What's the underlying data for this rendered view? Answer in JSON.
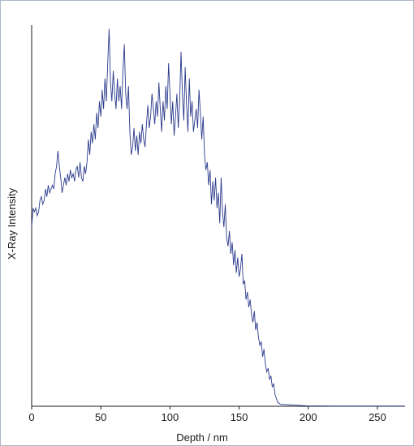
{
  "chart_data": {
    "type": "line",
    "xlabel": "Depth / nm",
    "ylabel": "X-Ray Intensity",
    "xlim": [
      0,
      270
    ],
    "ylim": [
      0,
      1
    ],
    "x_ticks": [
      0,
      50,
      100,
      150,
      200,
      250
    ],
    "y_ticks_shown": false,
    "grid": false,
    "legend": "none",
    "series": [
      {
        "color": "#2b3a8c",
        "points": [
          [
            0,
            0.47
          ],
          [
            1,
            0.52
          ],
          [
            2,
            0.51
          ],
          [
            3,
            0.52
          ],
          [
            4,
            0.5
          ],
          [
            5,
            0.51
          ],
          [
            6,
            0.54
          ],
          [
            7,
            0.55
          ],
          [
            8,
            0.53
          ],
          [
            9,
            0.54
          ],
          [
            10,
            0.57
          ],
          [
            11,
            0.55
          ],
          [
            12,
            0.58
          ],
          [
            13,
            0.56
          ],
          [
            14,
            0.57
          ],
          [
            15,
            0.58
          ],
          [
            16,
            0.57
          ],
          [
            17,
            0.61
          ],
          [
            18,
            0.63
          ],
          [
            19,
            0.67
          ],
          [
            20,
            0.63
          ],
          [
            21,
            0.6
          ],
          [
            22,
            0.56
          ],
          [
            23,
            0.58
          ],
          [
            24,
            0.6
          ],
          [
            25,
            0.58
          ],
          [
            26,
            0.61
          ],
          [
            27,
            0.59
          ],
          [
            28,
            0.62
          ],
          [
            29,
            0.6
          ],
          [
            30,
            0.61
          ],
          [
            31,
            0.59
          ],
          [
            32,
            0.62
          ],
          [
            33,
            0.63
          ],
          [
            34,
            0.6
          ],
          [
            35,
            0.64
          ],
          [
            36,
            0.6
          ],
          [
            37,
            0.59
          ],
          [
            38,
            0.63
          ],
          [
            39,
            0.61
          ],
          [
            40,
            0.64
          ],
          [
            41,
            0.7
          ],
          [
            42,
            0.66
          ],
          [
            43,
            0.72
          ],
          [
            44,
            0.69
          ],
          [
            45,
            0.74
          ],
          [
            46,
            0.7
          ],
          [
            47,
            0.77
          ],
          [
            48,
            0.73
          ],
          [
            49,
            0.8
          ],
          [
            50,
            0.76
          ],
          [
            51,
            0.83
          ],
          [
            52,
            0.78
          ],
          [
            53,
            0.86
          ],
          [
            54,
            0.8
          ],
          [
            55,
            0.9
          ],
          [
            56,
            0.99
          ],
          [
            57,
            0.85
          ],
          [
            58,
            0.8
          ],
          [
            59,
            0.88
          ],
          [
            60,
            0.82
          ],
          [
            61,
            0.78
          ],
          [
            62,
            0.86
          ],
          [
            63,
            0.8
          ],
          [
            64,
            0.84
          ],
          [
            65,
            0.78
          ],
          [
            66,
            0.88
          ],
          [
            67,
            0.95
          ],
          [
            68,
            0.82
          ],
          [
            69,
            0.78
          ],
          [
            70,
            0.84
          ],
          [
            71,
            0.72
          ],
          [
            72,
            0.66
          ],
          [
            73,
            0.68
          ],
          [
            74,
            0.73
          ],
          [
            75,
            0.67
          ],
          [
            76,
            0.71
          ],
          [
            77,
            0.66
          ],
          [
            78,
            0.72
          ],
          [
            79,
            0.69
          ],
          [
            80,
            0.74
          ],
          [
            81,
            0.7
          ],
          [
            82,
            0.68
          ],
          [
            83,
            0.74
          ],
          [
            84,
            0.79
          ],
          [
            85,
            0.73
          ],
          [
            86,
            0.76
          ],
          [
            87,
            0.82
          ],
          [
            88,
            0.78
          ],
          [
            89,
            0.74
          ],
          [
            90,
            0.8
          ],
          [
            91,
            0.76
          ],
          [
            92,
            0.85
          ],
          [
            93,
            0.78
          ],
          [
            94,
            0.72
          ],
          [
            95,
            0.8
          ],
          [
            96,
            0.75
          ],
          [
            97,
            0.84
          ],
          [
            98,
            0.78
          ],
          [
            99,
            0.9
          ],
          [
            100,
            0.82
          ],
          [
            101,
            0.74
          ],
          [
            102,
            0.8
          ],
          [
            103,
            0.71
          ],
          [
            104,
            0.76
          ],
          [
            105,
            0.82
          ],
          [
            106,
            0.73
          ],
          [
            107,
            0.8
          ],
          [
            108,
            0.93
          ],
          [
            109,
            0.82
          ],
          [
            110,
            0.75
          ],
          [
            111,
            0.89
          ],
          [
            112,
            0.79
          ],
          [
            113,
            0.72
          ],
          [
            114,
            0.86
          ],
          [
            115,
            0.76
          ],
          [
            116,
            0.8
          ],
          [
            117,
            0.72
          ],
          [
            118,
            0.75
          ],
          [
            119,
            0.78
          ],
          [
            120,
            0.73
          ],
          [
            121,
            0.83
          ],
          [
            122,
            0.77
          ],
          [
            123,
            0.7
          ],
          [
            124,
            0.76
          ],
          [
            125,
            0.66
          ],
          [
            126,
            0.62
          ],
          [
            127,
            0.64
          ],
          [
            128,
            0.58
          ],
          [
            129,
            0.62
          ],
          [
            130,
            0.53
          ],
          [
            131,
            0.59
          ],
          [
            132,
            0.54
          ],
          [
            133,
            0.6
          ],
          [
            134,
            0.52
          ],
          [
            135,
            0.56
          ],
          [
            136,
            0.48
          ],
          [
            137,
            0.6
          ],
          [
            138,
            0.51
          ],
          [
            139,
            0.47
          ],
          [
            140,
            0.53
          ],
          [
            141,
            0.44
          ],
          [
            142,
            0.42
          ],
          [
            143,
            0.46
          ],
          [
            144,
            0.4
          ],
          [
            145,
            0.43
          ],
          [
            146,
            0.37
          ],
          [
            147,
            0.41
          ],
          [
            148,
            0.35
          ],
          [
            149,
            0.39
          ],
          [
            150,
            0.34
          ],
          [
            151,
            0.36
          ],
          [
            152,
            0.4
          ],
          [
            153,
            0.32
          ],
          [
            154,
            0.33
          ],
          [
            155,
            0.28
          ],
          [
            156,
            0.3
          ],
          [
            157,
            0.26
          ],
          [
            158,
            0.28
          ],
          [
            159,
            0.24
          ],
          [
            160,
            0.22
          ],
          [
            161,
            0.25
          ],
          [
            162,
            0.2
          ],
          [
            163,
            0.22
          ],
          [
            164,
            0.18
          ],
          [
            165,
            0.16
          ],
          [
            166,
            0.17
          ],
          [
            167,
            0.13
          ],
          [
            168,
            0.15
          ],
          [
            169,
            0.11
          ],
          [
            170,
            0.09
          ],
          [
            171,
            0.1
          ],
          [
            172,
            0.07
          ],
          [
            173,
            0.08
          ],
          [
            174,
            0.05
          ],
          [
            175,
            0.06
          ],
          [
            176,
            0.03
          ],
          [
            177,
            0.02
          ],
          [
            178,
            0.01
          ],
          [
            180,
            0.005
          ],
          [
            185,
            0.004
          ],
          [
            190,
            0.003
          ],
          [
            195,
            0.002
          ],
          [
            200,
            0.001
          ],
          [
            210,
            0.0008
          ],
          [
            220,
            0.0005
          ],
          [
            230,
            0.0005
          ],
          [
            240,
            0.0005
          ],
          [
            250,
            0.0005
          ],
          [
            260,
            0.0005
          ],
          [
            270,
            0.0005
          ]
        ]
      }
    ]
  }
}
